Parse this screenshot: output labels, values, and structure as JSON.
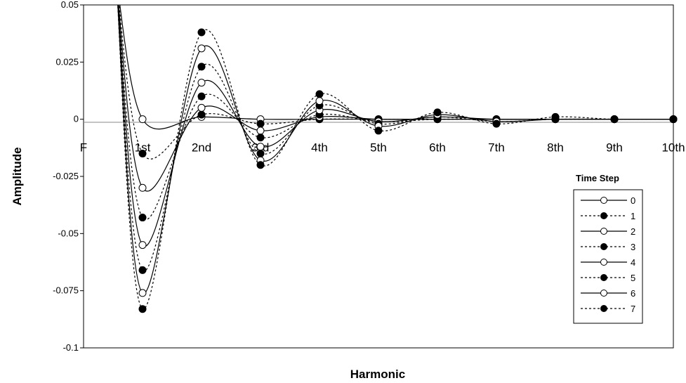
{
  "chart_data": {
    "type": "line",
    "xlabel": "Harmonic",
    "ylabel": "Amplitude",
    "categories": [
      "F",
      "1st",
      "2nd",
      "3rd",
      "4th",
      "5th",
      "6th",
      "7th",
      "8th",
      "9th",
      "10th"
    ],
    "ylim": [
      -0.1,
      0.05
    ],
    "yticks": [
      0.05,
      0.025,
      0,
      -0.025,
      -0.05,
      -0.075,
      -0.1
    ],
    "ytick_labels": [
      "0.05",
      "0.025",
      "0",
      "-0.025",
      "-0.05",
      "-0.075",
      "-0.1"
    ],
    "grid": false,
    "legend": {
      "title": "Time Step",
      "position": "right"
    },
    "series": [
      {
        "name": "0",
        "style": "solid",
        "marker": "open",
        "values": [
          null,
          0.0,
          0.001,
          0.0,
          0.0,
          0.0,
          0.0,
          0.0,
          0.0,
          0.0,
          0.0
        ]
      },
      {
        "name": "1",
        "style": "dashed",
        "marker": "filled",
        "values": [
          null,
          -0.015,
          0.002,
          -0.002,
          0.0,
          0.0,
          0.0,
          0.0,
          0.0,
          0.0,
          0.0
        ]
      },
      {
        "name": "2",
        "style": "solid",
        "marker": "open",
        "values": [
          null,
          -0.03,
          0.005,
          -0.005,
          0.001,
          0.0,
          0.0,
          0.0,
          0.0,
          0.0,
          0.0
        ]
      },
      {
        "name": "3",
        "style": "dashed",
        "marker": "filled",
        "values": [
          null,
          -0.043,
          0.01,
          -0.008,
          0.002,
          -0.001,
          0.0,
          0.0,
          0.0,
          0.0,
          0.0
        ]
      },
      {
        "name": "4",
        "style": "solid",
        "marker": "open",
        "values": [
          null,
          -0.055,
          0.016,
          -0.012,
          0.004,
          -0.001,
          0.001,
          0.0,
          0.0,
          0.0,
          0.0
        ]
      },
      {
        "name": "5",
        "style": "dashed",
        "marker": "filled",
        "values": [
          null,
          -0.066,
          0.023,
          -0.015,
          0.006,
          -0.002,
          0.001,
          -0.001,
          0.0,
          0.0,
          0.0
        ]
      },
      {
        "name": "6",
        "style": "solid",
        "marker": "open",
        "values": [
          null,
          -0.076,
          0.031,
          -0.018,
          0.008,
          -0.003,
          0.002,
          -0.001,
          0.0,
          0.0,
          0.0
        ]
      },
      {
        "name": "7",
        "style": "dashed",
        "marker": "filled",
        "values": [
          null,
          -0.083,
          0.038,
          -0.02,
          0.011,
          -0.005,
          0.003,
          -0.002,
          0.001,
          0.0,
          0.0
        ]
      }
    ]
  }
}
